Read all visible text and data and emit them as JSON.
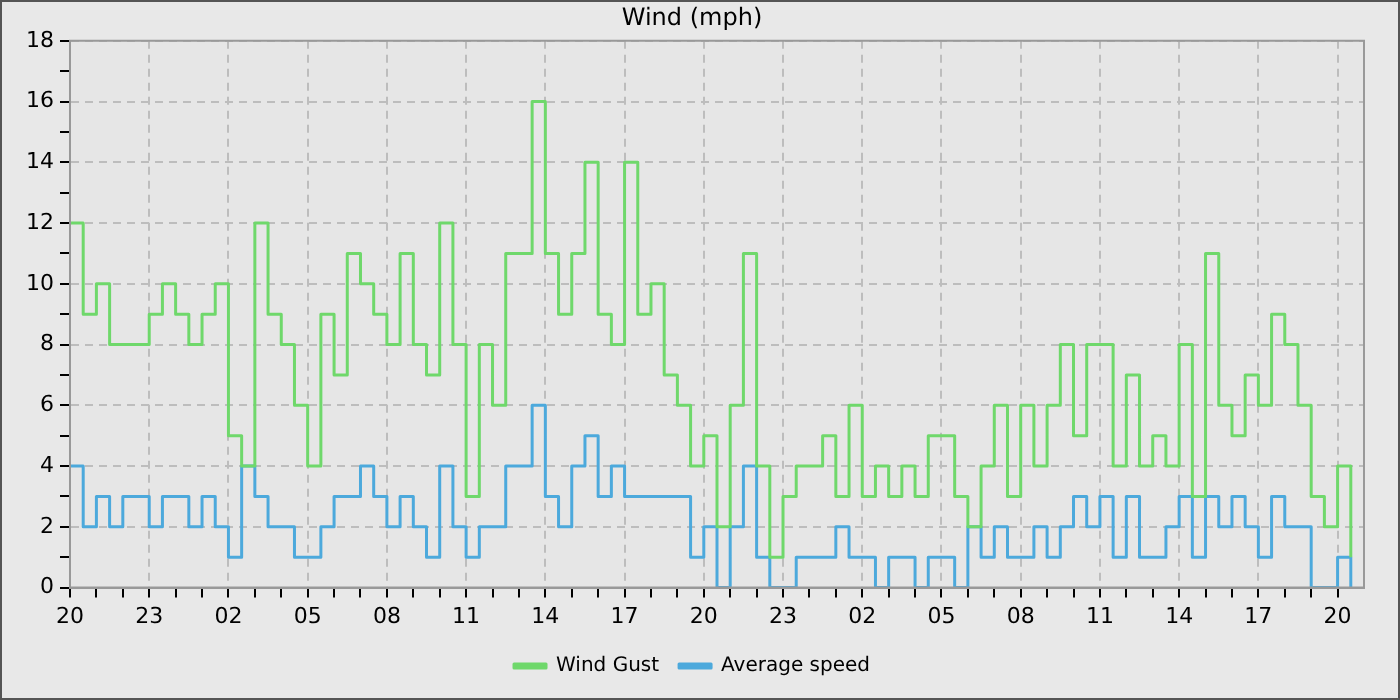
{
  "chart_data": {
    "type": "step",
    "title": "Wind (mph)",
    "x": [
      "--01-01T20:00",
      "--01-01T20:30",
      "--01-01T21:00",
      "--01-01T21:30",
      "--01-01T22:00",
      "--01-01T22:30",
      "--01-01T23:00",
      "--01-01T23:30",
      "--01-02T00:00",
      "--01-02T00:30",
      "--01-02T01:00",
      "--01-02T01:30",
      "--01-02T02:00",
      "--01-02T02:30",
      "--01-02T03:00",
      "--01-02T03:30",
      "--01-02T04:00",
      "--01-02T04:30",
      "--01-02T05:00",
      "--01-02T05:30",
      "--01-02T06:00",
      "--01-02T06:30",
      "--01-02T07:00",
      "--01-02T07:30",
      "--01-02T08:00",
      "--01-02T08:30",
      "--01-02T09:00",
      "--01-02T09:30",
      "--01-02T10:00",
      "--01-02T10:30",
      "--01-02T11:00",
      "--01-02T11:30",
      "--01-02T12:00",
      "--01-02T12:30",
      "--01-02T13:00",
      "--01-02T13:30",
      "--01-02T14:00",
      "--01-02T14:30",
      "--01-02T15:00",
      "--01-02T15:30",
      "--01-02T16:00",
      "--01-02T16:30",
      "--01-02T17:00",
      "--01-02T17:30",
      "--01-02T18:00",
      "--01-02T18:30",
      "--01-02T19:00",
      "--01-02T19:30",
      "--01-02T20:00",
      "--01-02T20:30",
      "--01-02T21:00",
      "--01-02T21:30",
      "--01-02T22:00",
      "--01-02T22:30",
      "--01-02T23:00",
      "--01-02T23:30",
      "--01-03T00:00",
      "--01-03T00:30",
      "--01-03T01:00",
      "--01-03T01:30",
      "--01-03T02:00",
      "--01-03T02:30",
      "--01-03T03:00",
      "--01-03T03:30",
      "--01-03T04:00",
      "--01-03T04:30",
      "--01-03T05:00",
      "--01-03T05:30",
      "--01-03T06:00",
      "--01-03T06:30",
      "--01-03T07:00",
      "--01-03T07:30",
      "--01-03T08:00",
      "--01-03T08:30",
      "--01-03T09:00",
      "--01-03T09:30",
      "--01-03T10:00",
      "--01-03T10:30",
      "--01-03T11:00",
      "--01-03T11:30",
      "--01-03T12:00",
      "--01-03T12:30",
      "--01-03T13:00",
      "--01-03T13:30",
      "--01-03T14:00",
      "--01-03T14:30",
      "--01-03T15:00",
      "--01-03T15:30",
      "--01-03T16:00",
      "--01-03T16:30",
      "--01-03T17:00",
      "--01-03T17:30",
      "--01-03T18:00",
      "--01-03T18:30",
      "--01-03T19:00",
      "--01-03T19:30",
      "--01-03T20:00",
      "--01-03T20:30"
    ],
    "series": [
      {
        "name": "Wind Gust",
        "color": "#6fd86b",
        "values": [
          12,
          9,
          10,
          8,
          8,
          8,
          9,
          10,
          9,
          8,
          9,
          10,
          5,
          4,
          12,
          9,
          8,
          6,
          4,
          9,
          7,
          11,
          10,
          9,
          8,
          11,
          8,
          7,
          12,
          8,
          3,
          8,
          6,
          11,
          11,
          16,
          11,
          9,
          11,
          14,
          9,
          8,
          14,
          9,
          10,
          7,
          6,
          4,
          5,
          2,
          6,
          11,
          4,
          1,
          3,
          4,
          4,
          5,
          3,
          6,
          3,
          4,
          3,
          4,
          3,
          5,
          5,
          3,
          2,
          4,
          6,
          3,
          6,
          4,
          6,
          8,
          5,
          8,
          8,
          4,
          7,
          4,
          5,
          4,
          8,
          3,
          11,
          6,
          5,
          7,
          6,
          9,
          8,
          6,
          3,
          2,
          4,
          1
        ]
      },
      {
        "name": "Average speed",
        "color": "#4ca9dc",
        "values": [
          4,
          2,
          3,
          2,
          3,
          3,
          2,
          3,
          3,
          2,
          3,
          2,
          1,
          4,
          3,
          2,
          2,
          1,
          1,
          2,
          3,
          3,
          4,
          3,
          2,
          3,
          2,
          1,
          4,
          2,
          1,
          2,
          2,
          4,
          4,
          6,
          3,
          2,
          4,
          5,
          3,
          4,
          3,
          3,
          3,
          3,
          3,
          1,
          2,
          0,
          2,
          4,
          1,
          0,
          0,
          1,
          1,
          1,
          2,
          1,
          1,
          0,
          1,
          1,
          0,
          1,
          1,
          0,
          2,
          1,
          2,
          1,
          1,
          2,
          1,
          2,
          3,
          2,
          3,
          1,
          3,
          1,
          1,
          2,
          3,
          1,
          3,
          2,
          3,
          2,
          1,
          3,
          2,
          2,
          0,
          0,
          1,
          0
        ]
      }
    ],
    "xlim": [
      "--01-01T20:00",
      "--01-03T21:00"
    ],
    "xticks": [
      {
        "value": "--01-01T20:00",
        "label": "20"
      },
      {
        "value": "--01-01T21:00",
        "label": null
      },
      {
        "value": "--01-01T22:00",
        "label": null
      },
      {
        "value": "--01-01T23:00",
        "label": "23"
      },
      {
        "value": "--01-02T00:00",
        "label": null
      },
      {
        "value": "--01-02T01:00",
        "label": null
      },
      {
        "value": "--01-02T02:00",
        "label": "02"
      },
      {
        "value": "--01-02T03:00",
        "label": null
      },
      {
        "value": "--01-02T04:00",
        "label": null
      },
      {
        "value": "--01-02T05:00",
        "label": "05"
      },
      {
        "value": "--01-02T06:00",
        "label": null
      },
      {
        "value": "--01-02T07:00",
        "label": null
      },
      {
        "value": "--01-02T08:00",
        "label": "08"
      },
      {
        "value": "--01-02T09:00",
        "label": null
      },
      {
        "value": "--01-02T10:00",
        "label": null
      },
      {
        "value": "--01-02T11:00",
        "label": "11"
      },
      {
        "value": "--01-02T12:00",
        "label": null
      },
      {
        "value": "--01-02T13:00",
        "label": null
      },
      {
        "value": "--01-02T14:00",
        "label": "14"
      },
      {
        "value": "--01-02T15:00",
        "label": null
      },
      {
        "value": "--01-02T16:00",
        "label": null
      },
      {
        "value": "--01-02T17:00",
        "label": "17"
      },
      {
        "value": "--01-02T18:00",
        "label": null
      },
      {
        "value": "--01-02T19:00",
        "label": null
      },
      {
        "value": "--01-02T20:00",
        "label": "20"
      },
      {
        "value": "--01-02T21:00",
        "label": null
      },
      {
        "value": "--01-02T22:00",
        "label": null
      },
      {
        "value": "--01-02T23:00",
        "label": "23"
      },
      {
        "value": "--01-03T00:00",
        "label": null
      },
      {
        "value": "--01-03T01:00",
        "label": null
      },
      {
        "value": "--01-03T02:00",
        "label": "02"
      },
      {
        "value": "--01-03T03:00",
        "label": null
      },
      {
        "value": "--01-03T04:00",
        "label": null
      },
      {
        "value": "--01-03T05:00",
        "label": "05"
      },
      {
        "value": "--01-03T06:00",
        "label": null
      },
      {
        "value": "--01-03T07:00",
        "label": null
      },
      {
        "value": "--01-03T08:00",
        "label": "08"
      },
      {
        "value": "--01-03T09:00",
        "label": null
      },
      {
        "value": "--01-03T10:00",
        "label": null
      },
      {
        "value": "--01-03T11:00",
        "label": "11"
      },
      {
        "value": "--01-03T12:00",
        "label": null
      },
      {
        "value": "--01-03T13:00",
        "label": null
      },
      {
        "value": "--01-03T14:00",
        "label": "14"
      },
      {
        "value": "--01-03T15:00",
        "label": null
      },
      {
        "value": "--01-03T16:00",
        "label": null
      },
      {
        "value": "--01-03T17:00",
        "label": "17"
      },
      {
        "value": "--01-03T18:00",
        "label": null
      },
      {
        "value": "--01-03T19:00",
        "label": null
      },
      {
        "value": "--01-03T20:00",
        "label": "20"
      }
    ],
    "ylim": [
      0,
      18
    ],
    "yticks": [
      0,
      {
        "value": 1,
        "label": null
      },
      2,
      {
        "value": 3,
        "label": null
      },
      4,
      {
        "value": 5,
        "label": null
      },
      6,
      {
        "value": 7,
        "label": null
      },
      8,
      {
        "value": 9,
        "label": null
      },
      10,
      {
        "value": 11,
        "label": null
      },
      12,
      {
        "value": 13,
        "label": null
      },
      14,
      {
        "value": 15,
        "label": null
      },
      16,
      {
        "value": 17,
        "label": null
      },
      18
    ],
    "grid": true,
    "legend": "bottom"
  }
}
